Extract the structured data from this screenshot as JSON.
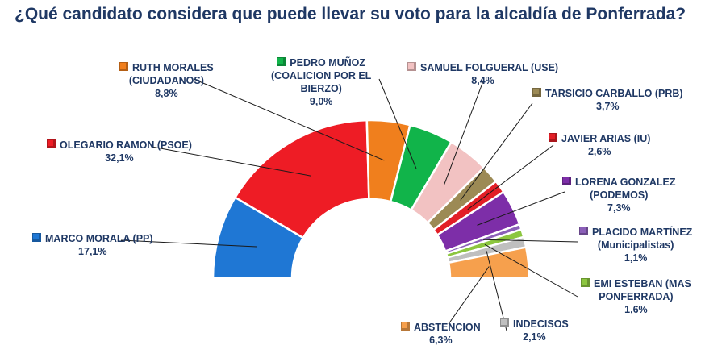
{
  "chart_data": {
    "type": "pie",
    "variant": "semicircle-donut",
    "title": "¿Qué candidato considera que puede llevar su voto para la alcaldía de Ponferrada?",
    "slices": [
      {
        "name": "MARCO MORALA (PP)",
        "name_lines": [
          "MARCO MORALA (PP)"
        ],
        "value": 17.1,
        "label": "17,1%",
        "color": "#1f77d4"
      },
      {
        "name": "OLEGARIO RAMON (PSOE)",
        "name_lines": [
          "OLEGARIO RAMON (PSOE)"
        ],
        "value": 32.1,
        "label": "32,1%",
        "color": "#ee1c25"
      },
      {
        "name": "RUTH MORALES (CIUDADANOS)",
        "name_lines": [
          "RUTH MORALES",
          "(CIUDADANOS)"
        ],
        "value": 8.8,
        "label": "8,8%",
        "color": "#f07f1d"
      },
      {
        "name": "PEDRO MUÑOZ (COALICION POR EL BIERZO)",
        "name_lines": [
          "PEDRO MUÑOZ",
          "(COALICION POR EL",
          "BIERZO)"
        ],
        "value": 9.0,
        "label": "9,0%",
        "color": "#11b44a"
      },
      {
        "name": "SAMUEL FOLGUERAL (USE)",
        "name_lines": [
          "SAMUEL FOLGUERAL (USE)"
        ],
        "value": 8.4,
        "label": "8,4%",
        "color": "#f2c2c2"
      },
      {
        "name": "TARSICIO CARBALLO (PRB)",
        "name_lines": [
          "TARSICIO CARBALLO (PRB)"
        ],
        "value": 3.7,
        "label": "3,7%",
        "color": "#9c8a55"
      },
      {
        "name": "JAVIER ARIAS (IU)",
        "name_lines": [
          "JAVIER ARIAS (IU)"
        ],
        "value": 2.6,
        "label": "2,6%",
        "color": "#e21e26"
      },
      {
        "name": "LORENA GONZALEZ (PODEMOS)",
        "name_lines": [
          "LORENA GONZALEZ",
          "(PODEMOS)"
        ],
        "value": 7.3,
        "label": "7,3%",
        "color": "#7d2ea8"
      },
      {
        "name": "PLACIDO MARTÍNEZ (Municipalistas)",
        "name_lines": [
          "PLACIDO MARTÍNEZ",
          "(Municipalistas)"
        ],
        "value": 1.1,
        "label": "1,1%",
        "color": "#8b5fb8"
      },
      {
        "name": "EMI ESTEBAN (MAS PONFERRADA)",
        "name_lines": [
          "EMI ESTEBAN (MAS",
          "PONFERRADA)"
        ],
        "value": 1.6,
        "label": "1,6%",
        "color": "#8cc63f"
      },
      {
        "name": "INDECISOS",
        "name_lines": [
          "INDECISOS"
        ],
        "value": 2.1,
        "label": "2,1%",
        "color": "#bfbfbf"
      },
      {
        "name": "ABSTENCION",
        "name_lines": [
          "ABSTENCION"
        ],
        "value": 6.3,
        "label": "6,3%",
        "color": "#f6a04d"
      }
    ]
  }
}
